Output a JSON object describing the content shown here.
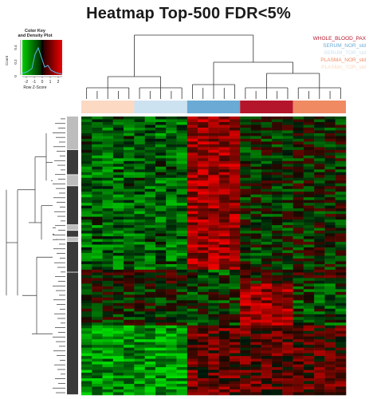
{
  "title": "Heatmap Top-500 FDR<5%",
  "color_key": {
    "title_line1": "Color Key",
    "title_line2": "and Density Plot",
    "xlabel": "Row Z-Score",
    "ylabel": "Count",
    "ticks": [
      "-2",
      "-1",
      "0",
      "1",
      "2"
    ],
    "yticks": [
      "0",
      "0.2",
      "0.4"
    ],
    "low_color": "#00cc00",
    "mid_color": "#000000",
    "high_color": "#ee0000"
  },
  "legend": [
    {
      "label": "WHOLE_BLOOD_PAX",
      "color": "#b5152b"
    },
    {
      "label": "SERUM_NOR_std",
      "color": "#6aaad5"
    },
    {
      "label": "SERUM_TOR_std",
      "color": "#cde2f0"
    },
    {
      "label": "PLASMA_NOR_std",
      "color": "#ef8a62"
    },
    {
      "label": "PLASMA_TOR_std",
      "color": "#fcd9c3"
    }
  ],
  "chart_data": {
    "type": "heatmap",
    "title": "Heatmap Top-500 FDR<5%",
    "rows": 500,
    "column_groups": [
      {
        "group": "PLASMA_TOR_std",
        "color": "#fcd9c3",
        "n_columns": 5
      },
      {
        "group": "SERUM_TOR_std",
        "color": "#cde2f0",
        "n_columns": 5
      },
      {
        "group": "SERUM_NOR_std",
        "color": "#6aaad5",
        "n_columns": 5
      },
      {
        "group": "WHOLE_BLOOD_PAX",
        "color": "#b5152b",
        "n_columns": 5
      },
      {
        "group": "PLASMA_NOR_std",
        "color": "#ef8a62",
        "n_columns": 5
      }
    ],
    "row_clusters": [
      {
        "shade": "#bdbdbd",
        "rows": 60
      },
      {
        "shade": "#3a3a3a",
        "rows": 45
      },
      {
        "shade": "#bdbdbd",
        "rows": 20
      },
      {
        "shade": "#3a3a3a",
        "rows": 70
      },
      {
        "shade": "#bdbdbd",
        "rows": 10
      },
      {
        "shade": "#3a3a3a",
        "rows": 12
      },
      {
        "shade": "#bdbdbd",
        "rows": 8
      },
      {
        "shade": "#3a3a3a",
        "rows": 55
      },
      {
        "shade": "#3a3a3a",
        "rows": 220
      }
    ],
    "z_range": [
      -2.5,
      2.5
    ],
    "block_pattern": [
      {
        "rows": [
          0,
          0.55
        ],
        "group_means": [
          -1.0,
          -1.0,
          1.6,
          -0.3,
          -0.2
        ]
      },
      {
        "rows": [
          0.55,
          0.6
        ],
        "group_means": [
          0.2,
          0.2,
          -0.6,
          0.2,
          0.1
        ]
      },
      {
        "rows": [
          0.6,
          0.75
        ],
        "group_means": [
          -0.2,
          -0.2,
          -0.4,
          1.6,
          -0.6
        ]
      },
      {
        "rows": [
          0.75,
          1.0
        ],
        "group_means": [
          -1.6,
          -1.7,
          0.9,
          0.8,
          0.7
        ]
      }
    ]
  }
}
